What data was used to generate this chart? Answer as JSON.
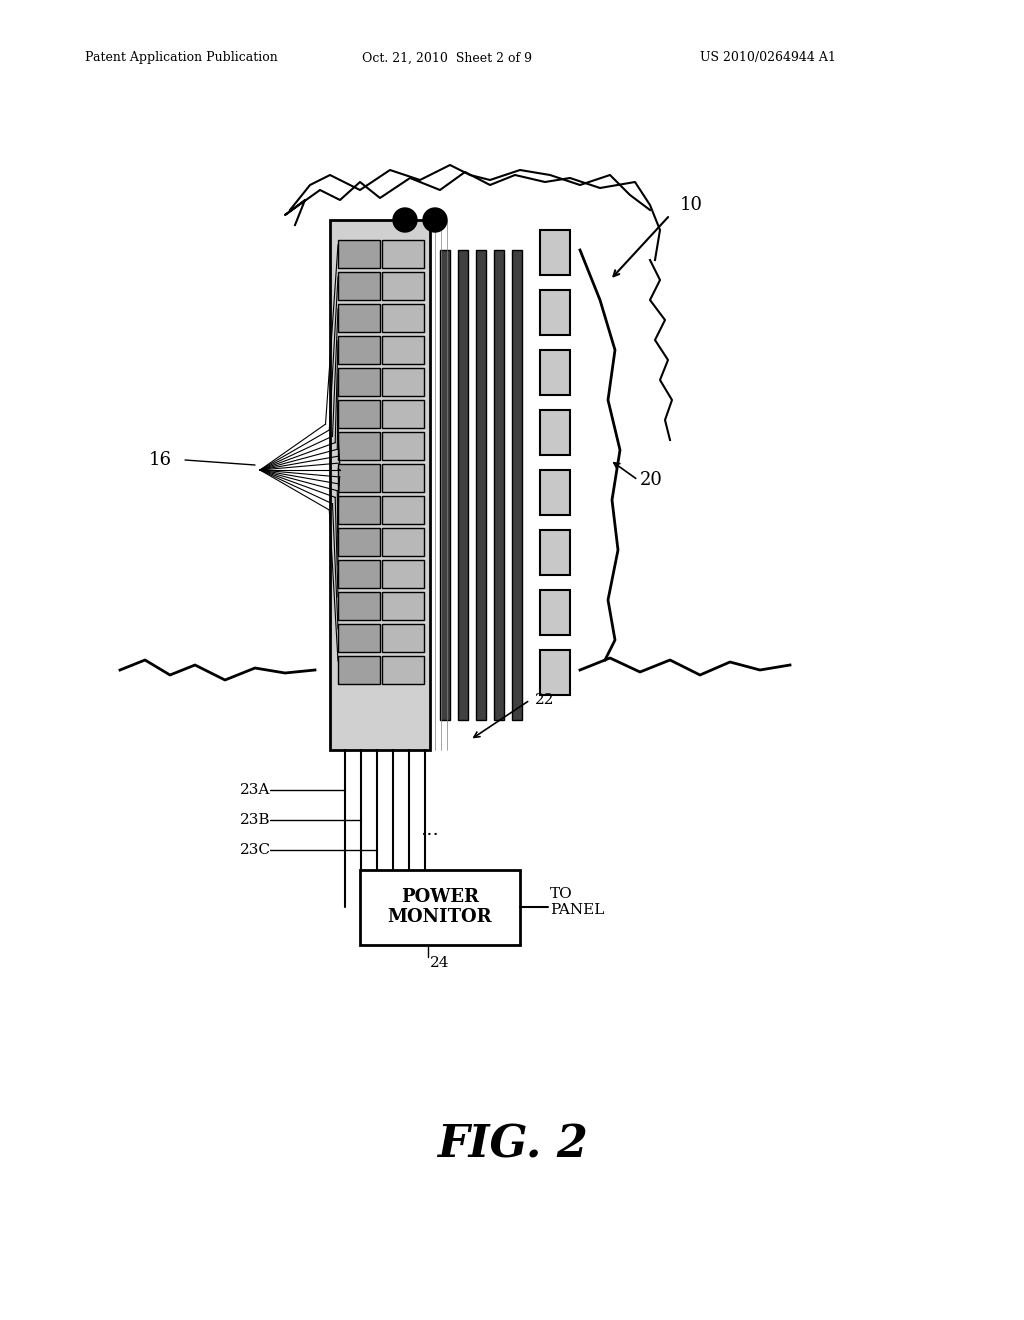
{
  "background_color": "#ffffff",
  "header_left": "Patent Application Publication",
  "header_center": "Oct. 21, 2010  Sheet 2 of 9",
  "header_right": "US 2010/0264944 A1",
  "fig_label": "FIG. 2",
  "label_10": "10",
  "label_16": "16",
  "label_20": "20",
  "label_22": "22",
  "label_23A": "23A",
  "label_23B": "23B",
  "label_23C": "23C",
  "label_24": "24",
  "label_to_panel": "TO\nPANEL",
  "power_monitor_text": "POWER\nMONITOR",
  "dots": "..."
}
